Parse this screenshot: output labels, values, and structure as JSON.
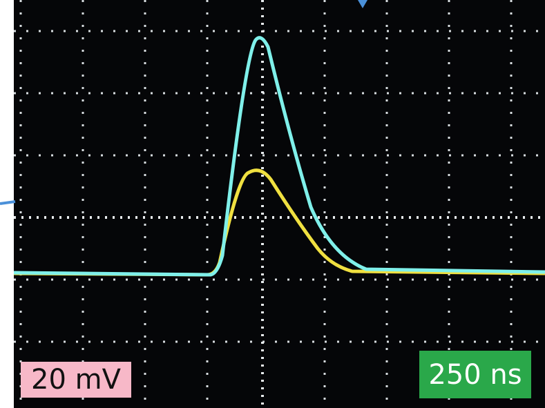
{
  "labels": {
    "voltage_scale": "20 mV",
    "time_scale": "250 ns"
  }
}
